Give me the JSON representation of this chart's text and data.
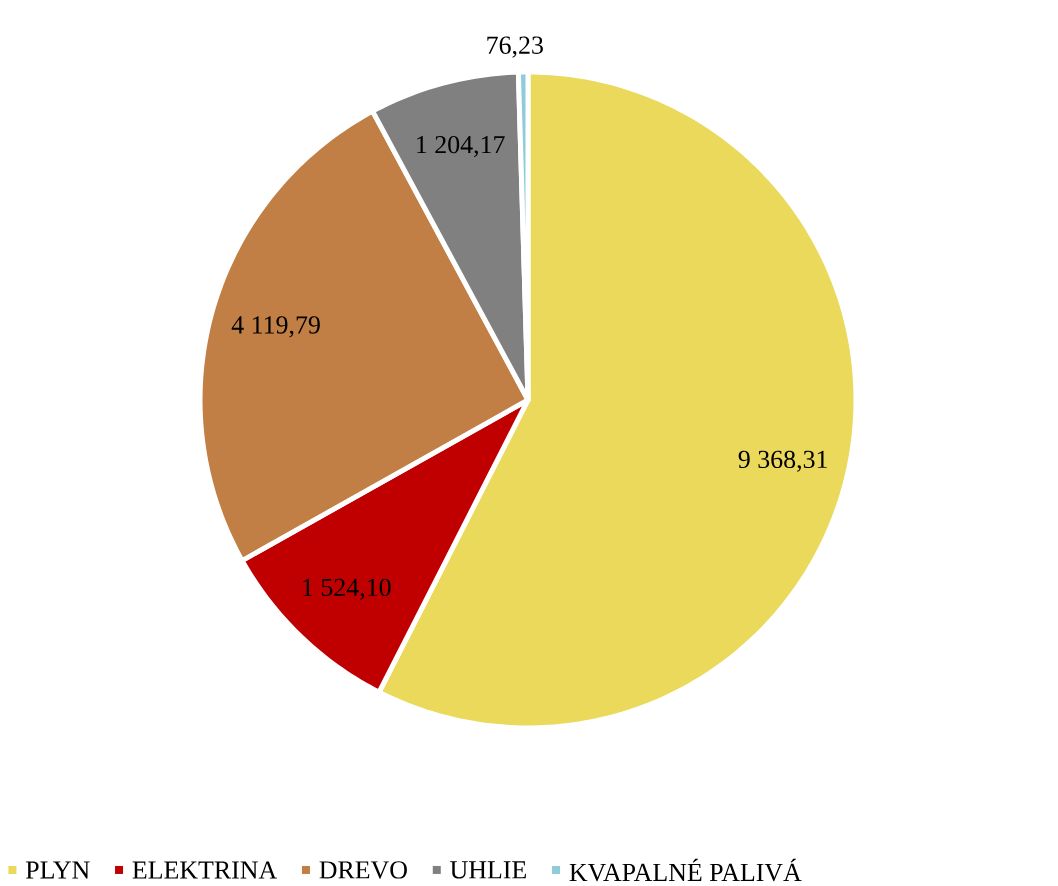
{
  "chart_data": {
    "type": "pie",
    "categories": [
      "PLYN",
      "ELEKTRINA",
      "DREVO",
      "UHLIE",
      "KVAPALNÉ PALIVÁ"
    ],
    "values": [
      9368.31,
      1524.1,
      4119.79,
      1204.17,
      76.23
    ],
    "value_labels": [
      "9 368,31",
      "1 524,10",
      "4 119,79",
      "1 204,17",
      "76,23"
    ],
    "colors": [
      "#ebd95b",
      "#c00000",
      "#c27f45",
      "#808080",
      "#8fcbd9"
    ],
    "legend": "bottom"
  }
}
